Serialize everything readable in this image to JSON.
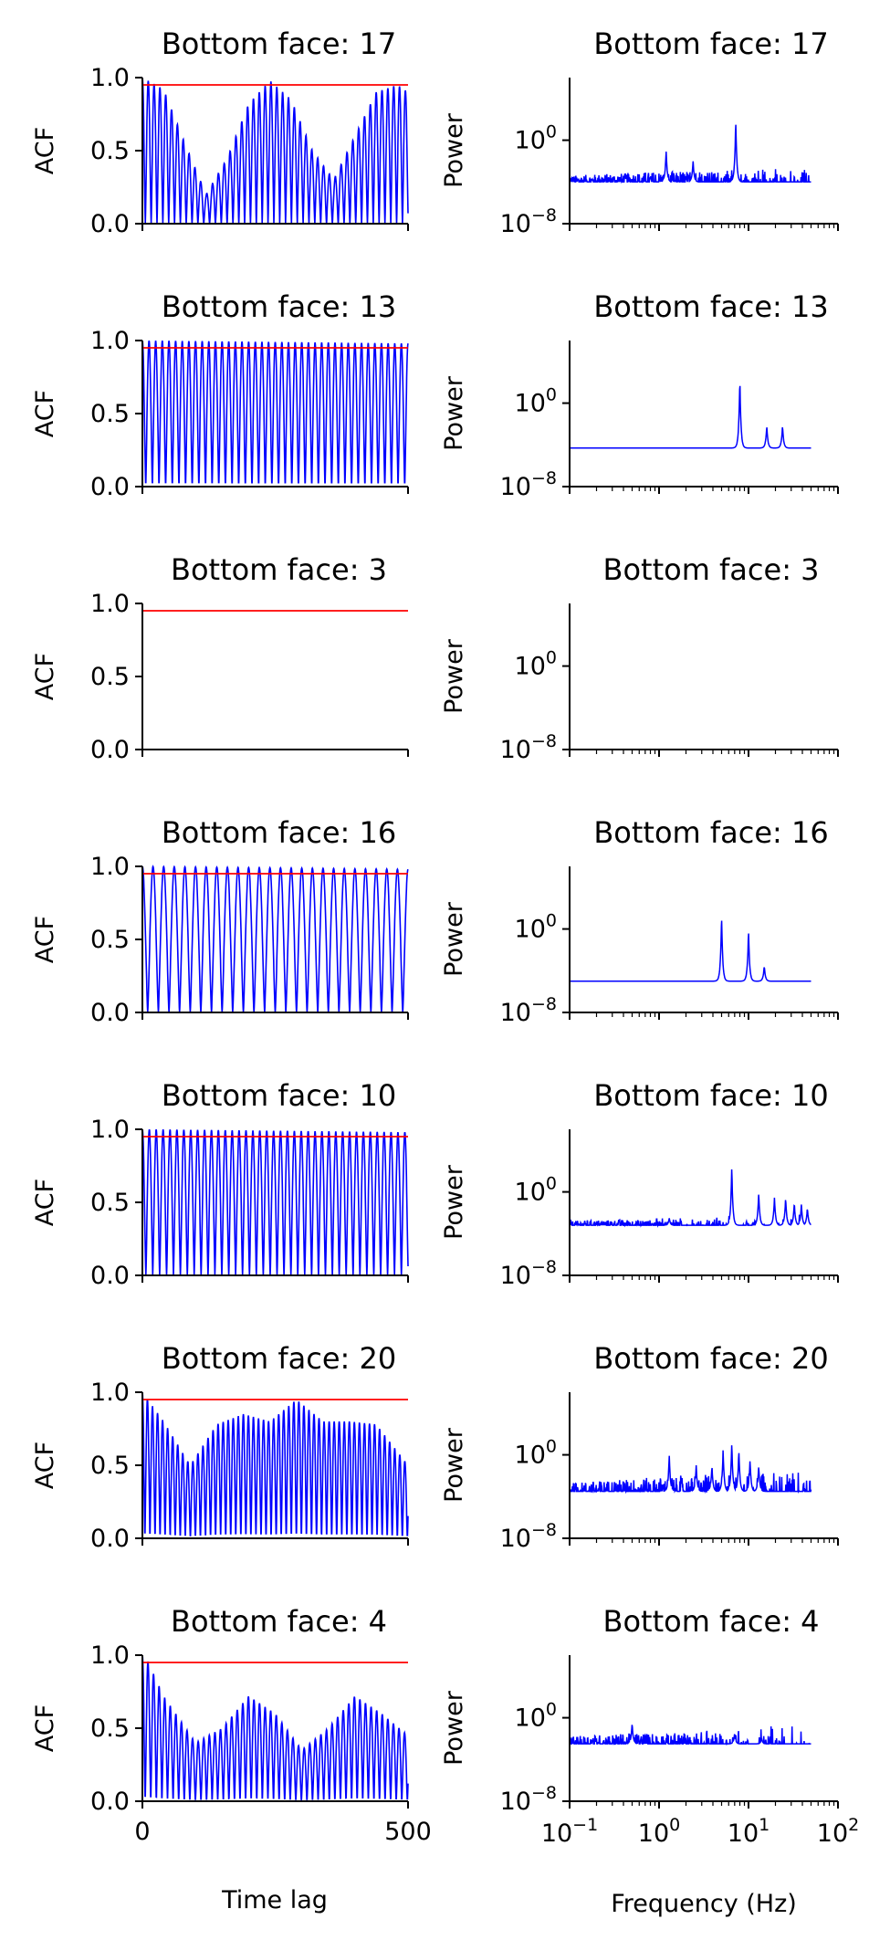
{
  "figure": {
    "acf_xlabel": "Time lag",
    "psd_xlabel": "Frequency (Hz)",
    "acf_ylabel": "ACF",
    "psd_ylabel": "Power"
  },
  "chart_data": [
    {
      "type": "line",
      "title": "Bottom face: 17",
      "panel": "acf",
      "xlim": [
        0,
        500
      ],
      "ylim": [
        0,
        1
      ],
      "threshold": 0.95,
      "series_color": "#0000ff",
      "threshold_color": "#ff0000",
      "ytick_labels": [
        "0.0",
        "0.5",
        "1.0"
      ],
      "x": [
        0,
        40,
        80,
        120,
        160,
        200,
        240,
        280,
        320,
        360,
        400,
        440,
        480,
        500
      ],
      "y": [
        1.0,
        0.92,
        0.55,
        0.2,
        0.45,
        0.82,
        0.98,
        0.85,
        0.5,
        0.3,
        0.6,
        0.9,
        0.95,
        0.9
      ],
      "peak_spacing": 11
    },
    {
      "type": "line",
      "title": "Bottom face: 17",
      "panel": "psd",
      "xscale": "log",
      "yscale": "log",
      "xlim": [
        0.1,
        100
      ],
      "ylim_log10": [
        -8,
        6
      ],
      "ytick_labels": [
        {
          "base": "10",
          "exp": "0"
        },
        {
          "base": "10",
          "exp": "−8"
        }
      ],
      "baseline_log10": -4,
      "noise_log10": 1.2,
      "tail_drop_log10": 2.5,
      "peaks": [
        {
          "f": 1.2,
          "log10_height": -1
        },
        {
          "f": 2.4,
          "log10_height": -2
        },
        {
          "f": 7.2,
          "log10_height": 2
        }
      ]
    },
    {
      "type": "line",
      "title": "Bottom face: 13",
      "panel": "acf",
      "xlim": [
        0,
        500
      ],
      "ylim": [
        0,
        1
      ],
      "threshold": 0.95,
      "series_color": "#0000ff",
      "threshold_color": "#ff0000",
      "ytick_labels": [
        "0.0",
        "0.5",
        "1.0"
      ],
      "x": [
        0,
        500
      ],
      "y": [
        1.0,
        0.98
      ],
      "peak_spacing": 12.5
    },
    {
      "type": "line",
      "title": "Bottom face: 13",
      "panel": "psd",
      "xscale": "log",
      "yscale": "log",
      "xlim": [
        0.1,
        100
      ],
      "ylim_log10": [
        -8,
        6
      ],
      "ytick_labels": [
        {
          "base": "10",
          "exp": "0"
        },
        {
          "base": "10",
          "exp": "−8"
        }
      ],
      "baseline_log10": -4.3,
      "noise_log10": 0,
      "tail_drop_log10": 1.8,
      "peaks": [
        {
          "f": 8,
          "log10_height": 2.5
        },
        {
          "f": 16,
          "log10_height": -2.1
        },
        {
          "f": 24,
          "log10_height": -2.1
        },
        {
          "f": 32,
          "log10_height": -5.2
        },
        {
          "f": 40,
          "log10_height": -5.4
        }
      ]
    },
    {
      "type": "line",
      "title": "Bottom face: 3",
      "panel": "acf",
      "xlim": [
        0,
        500
      ],
      "ylim": [
        0,
        1
      ],
      "threshold": 0.95,
      "series_color": "#0000ff",
      "threshold_color": "#ff0000",
      "ytick_labels": [
        "0.0",
        "0.5",
        "1.0"
      ],
      "x": [
        0,
        500
      ],
      "y": [
        0,
        0
      ],
      "peak_spacing": 0
    },
    {
      "type": "line",
      "title": "Bottom face: 3",
      "panel": "psd",
      "xscale": "log",
      "yscale": "log",
      "xlim": [
        0.1,
        100
      ],
      "ylim_log10": [
        -8,
        6
      ],
      "ytick_labels": [
        {
          "base": "10",
          "exp": "0"
        },
        {
          "base": "10",
          "exp": "−8"
        }
      ],
      "baseline_log10": null,
      "noise_log10": 0,
      "tail_drop_log10": 0,
      "peaks": []
    },
    {
      "type": "line",
      "title": "Bottom face: 16",
      "panel": "acf",
      "xlim": [
        0,
        500
      ],
      "ylim": [
        0,
        1
      ],
      "threshold": 0.95,
      "series_color": "#0000ff",
      "threshold_color": "#ff0000",
      "ytick_labels": [
        "0.0",
        "0.5",
        "1.0"
      ],
      "x": [
        0,
        500
      ],
      "y": [
        1.0,
        0.98
      ],
      "peak_spacing": 20
    },
    {
      "type": "line",
      "title": "Bottom face: 16",
      "panel": "psd",
      "xscale": "log",
      "yscale": "log",
      "xlim": [
        0.1,
        100
      ],
      "ylim_log10": [
        -8,
        6
      ],
      "ytick_labels": [
        {
          "base": "10",
          "exp": "0"
        },
        {
          "base": "10",
          "exp": "−8"
        }
      ],
      "baseline_log10": -5,
      "noise_log10": 0,
      "tail_drop_log10": 2.8,
      "peaks": [
        {
          "f": 5,
          "log10_height": 1.5
        },
        {
          "f": 10,
          "log10_height": 0
        },
        {
          "f": 15,
          "log10_height": -3.5
        },
        {
          "f": 20,
          "log10_height": -5
        },
        {
          "f": 25,
          "log10_height": -5.2
        },
        {
          "f": 30,
          "log10_height": -5.6
        },
        {
          "f": 35,
          "log10_height": -5.6
        },
        {
          "f": 40,
          "log10_height": -6
        },
        {
          "f": 45,
          "log10_height": -6.2
        }
      ]
    },
    {
      "type": "line",
      "title": "Bottom face: 10",
      "panel": "acf",
      "xlim": [
        0,
        500
      ],
      "ylim": [
        0,
        1
      ],
      "threshold": 0.95,
      "series_color": "#0000ff",
      "threshold_color": "#ff0000",
      "ytick_labels": [
        "0.0",
        "0.5",
        "1.0"
      ],
      "x": [
        0,
        500
      ],
      "y": [
        1.0,
        0.98
      ],
      "peak_spacing": 13
    },
    {
      "type": "line",
      "title": "Bottom face: 10",
      "panel": "psd",
      "xscale": "log",
      "yscale": "log",
      "xlim": [
        0.1,
        100
      ],
      "ylim_log10": [
        -8,
        6
      ],
      "ytick_labels": [
        {
          "base": "10",
          "exp": "0"
        },
        {
          "base": "10",
          "exp": "−8"
        }
      ],
      "baseline_log10": -3.2,
      "noise_log10": 0.8,
      "tail_drop_log10": 3.5,
      "peaks": [
        {
          "f": 1.3,
          "log10_height": -2.5
        },
        {
          "f": 6.5,
          "log10_height": 2.5
        },
        {
          "f": 13,
          "log10_height": 0
        },
        {
          "f": 19.5,
          "log10_height": -0.5
        },
        {
          "f": 26,
          "log10_height": -0.5
        },
        {
          "f": 32.5,
          "log10_height": -1
        },
        {
          "f": 39,
          "log10_height": -1.2
        },
        {
          "f": 45.5,
          "log10_height": -1.5
        }
      ]
    },
    {
      "type": "line",
      "title": "Bottom face: 20",
      "panel": "acf",
      "xlim": [
        0,
        500
      ],
      "ylim": [
        0,
        1
      ],
      "threshold": 0.95,
      "series_color": "#0000ff",
      "threshold_color": "#ff0000",
      "ytick_labels": [
        "0.0",
        "0.5",
        "1.0"
      ],
      "x": [
        0,
        40,
        90,
        140,
        190,
        240,
        290,
        340,
        390,
        440,
        500
      ],
      "y": [
        1.0,
        0.8,
        0.5,
        0.78,
        0.85,
        0.8,
        0.95,
        0.8,
        0.8,
        0.78,
        0.5
      ],
      "peak_spacing": 9.5
    },
    {
      "type": "line",
      "title": "Bottom face: 20",
      "panel": "psd",
      "xscale": "log",
      "yscale": "log",
      "xlim": [
        0.1,
        100
      ],
      "ylim_log10": [
        -8,
        6
      ],
      "ytick_labels": [
        {
          "base": "10",
          "exp": "0"
        },
        {
          "base": "10",
          "exp": "−8"
        }
      ],
      "baseline_log10": -3.5,
      "noise_log10": 1.6,
      "tail_drop_log10": 2,
      "peaks": [
        {
          "f": 1.3,
          "log10_height": 0
        },
        {
          "f": 2.6,
          "log10_height": -1
        },
        {
          "f": 3.9,
          "log10_height": -1
        },
        {
          "f": 5.2,
          "log10_height": 0.5
        },
        {
          "f": 6.5,
          "log10_height": 1.2
        },
        {
          "f": 7.8,
          "log10_height": 0.5
        },
        {
          "f": 10.4,
          "log10_height": -0.5
        },
        {
          "f": 13,
          "log10_height": -1
        }
      ]
    },
    {
      "type": "line",
      "title": "Bottom face: 4",
      "panel": "acf",
      "xlim": [
        0,
        500
      ],
      "ylim": [
        0,
        1
      ],
      "threshold": 0.95,
      "series_color": "#0000ff",
      "threshold_color": "#ff0000",
      "ytick_labels": [
        "0.0",
        "0.5",
        "1.0"
      ],
      "xtick_labels": [
        "0",
        "500"
      ],
      "x": [
        0,
        5,
        40,
        100,
        150,
        200,
        250,
        300,
        350,
        400,
        450,
        500
      ],
      "y": [
        1.0,
        1.0,
        0.72,
        0.4,
        0.5,
        0.72,
        0.6,
        0.35,
        0.5,
        0.72,
        0.6,
        0.45
      ],
      "peak_spacing": 10.5
    },
    {
      "type": "line",
      "title": "Bottom face: 4",
      "panel": "psd",
      "xscale": "log",
      "yscale": "log",
      "xlim": [
        0.1,
        100
      ],
      "ylim_log10": [
        -8,
        6
      ],
      "ytick_labels": [
        {
          "base": "10",
          "exp": "0"
        },
        {
          "base": "10",
          "exp": "−8"
        }
      ],
      "xtick_labels": [
        {
          "base": "10",
          "exp": "−1"
        },
        {
          "base": "10",
          "exp": "0"
        },
        {
          "base": "10",
          "exp": "1"
        },
        {
          "base": "10",
          "exp": "2"
        }
      ],
      "baseline_log10": -2.5,
      "noise_log10": 1.4,
      "tail_drop_log10": 4,
      "peaks": [
        {
          "f": 0.5,
          "log10_height": -0.5
        },
        {
          "f": 7,
          "log10_height": -1.5
        },
        {
          "f": 14,
          "log10_height": -2
        }
      ]
    }
  ]
}
